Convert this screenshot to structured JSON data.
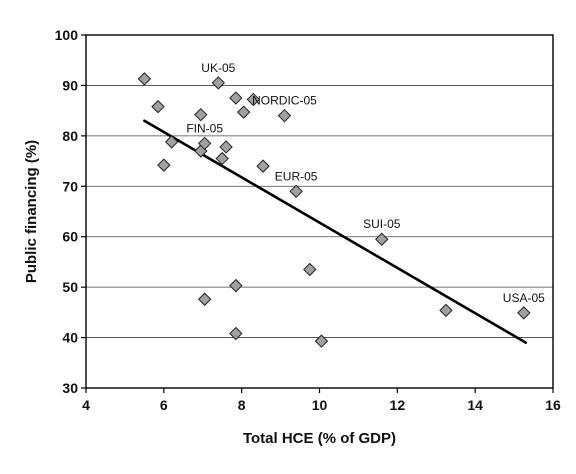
{
  "chart_data": {
    "type": "scatter",
    "title": "",
    "xlabel": "Total HCE (% of GDP)",
    "ylabel": "Public financing (%)",
    "xlim": [
      4,
      16
    ],
    "ylim": [
      30,
      100
    ],
    "xticks": [
      4,
      6,
      8,
      10,
      12,
      14,
      16
    ],
    "yticks": [
      30,
      40,
      50,
      60,
      70,
      80,
      90,
      100
    ],
    "grid": "horizontal",
    "marker": "diamond",
    "marker_color": "#a0a0a0",
    "points": [
      {
        "x": 5.5,
        "y": 91.3,
        "label": ""
      },
      {
        "x": 5.85,
        "y": 85.8,
        "label": ""
      },
      {
        "x": 6.0,
        "y": 74.2,
        "label": ""
      },
      {
        "x": 6.2,
        "y": 78.8,
        "label": ""
      },
      {
        "x": 6.95,
        "y": 84.2,
        "label": ""
      },
      {
        "x": 6.95,
        "y": 77.0,
        "label": ""
      },
      {
        "x": 7.05,
        "y": 78.5,
        "label": "FIN-05"
      },
      {
        "x": 7.05,
        "y": 47.6,
        "label": ""
      },
      {
        "x": 7.4,
        "y": 90.5,
        "label": "UK-05"
      },
      {
        "x": 7.5,
        "y": 75.5,
        "label": ""
      },
      {
        "x": 7.6,
        "y": 77.8,
        "label": ""
      },
      {
        "x": 7.85,
        "y": 87.5,
        "label": ""
      },
      {
        "x": 7.85,
        "y": 50.3,
        "label": ""
      },
      {
        "x": 7.85,
        "y": 40.8,
        "label": ""
      },
      {
        "x": 8.05,
        "y": 84.7,
        "label": ""
      },
      {
        "x": 8.3,
        "y": 87.2,
        "label": ""
      },
      {
        "x": 8.55,
        "y": 74.0,
        "label": ""
      },
      {
        "x": 9.1,
        "y": 84.0,
        "label": "NORDIC-05"
      },
      {
        "x": 9.4,
        "y": 69.0,
        "label": "EUR-05"
      },
      {
        "x": 9.75,
        "y": 53.5,
        "label": ""
      },
      {
        "x": 10.05,
        "y": 39.3,
        "label": ""
      },
      {
        "x": 11.6,
        "y": 59.5,
        "label": "SUI-05"
      },
      {
        "x": 13.25,
        "y": 45.4,
        "label": ""
      },
      {
        "x": 15.25,
        "y": 44.9,
        "label": "USA-05"
      }
    ],
    "trendline": {
      "x": [
        5.5,
        15.3
      ],
      "y": [
        83.0,
        39.0
      ]
    }
  }
}
